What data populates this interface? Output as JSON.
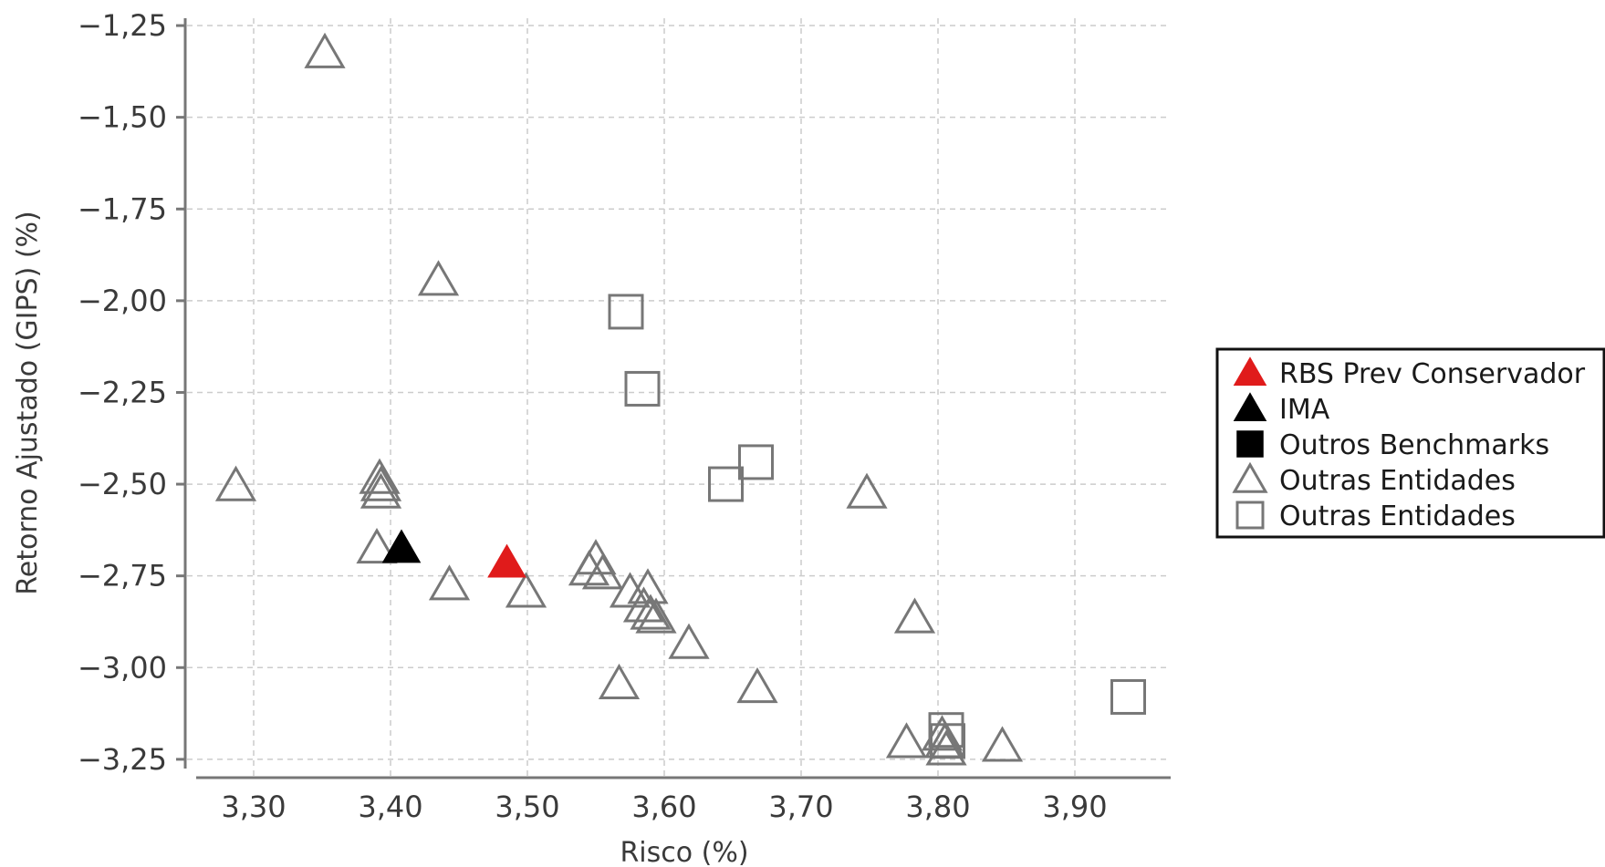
{
  "chart_data": {
    "type": "scatter",
    "title": "",
    "xlabel": "Risco (%)",
    "ylabel": "Retorno Ajustado (GIPS) (%)",
    "xlim": [
      3.25,
      3.97
    ],
    "ylim": [
      -3.3,
      -1.23
    ],
    "x_ticks": [
      3.3,
      3.4,
      3.5,
      3.6,
      3.7,
      3.8,
      3.9
    ],
    "x_tick_labels": [
      "3,30",
      "3,40",
      "3,50",
      "3,60",
      "3,70",
      "3,80",
      "3,90"
    ],
    "y_ticks": [
      -1.25,
      -1.5,
      -1.75,
      -2.0,
      -2.25,
      -2.5,
      -2.75,
      -3.0,
      -3.25
    ],
    "y_tick_labels": [
      "−1,25",
      "−1,50",
      "−1,75",
      "−2,00",
      "−2,25",
      "−2,50",
      "−2,75",
      "−3,00",
      "−3,25"
    ],
    "grid": true,
    "legend_position": "right",
    "series": [
      {
        "name": "RBS Prev Conservador",
        "marker": "triangle",
        "filled": true,
        "color": "#e01b1b",
        "points": [
          [
            3.485,
            -2.72
          ]
        ]
      },
      {
        "name": "IMA",
        "marker": "triangle",
        "filled": true,
        "color": "#000000",
        "points": [
          [
            3.408,
            -2.68
          ]
        ]
      },
      {
        "name": "Outros Benchmarks",
        "marker": "square",
        "filled": true,
        "color": "#000000",
        "points": []
      },
      {
        "name": "Outras Entidades",
        "marker": "triangle",
        "filled": false,
        "color": "#777777",
        "points": [
          [
            3.352,
            -1.33
          ],
          [
            3.435,
            -1.95
          ],
          [
            3.287,
            -2.51
          ],
          [
            3.392,
            -2.49
          ],
          [
            3.393,
            -2.51
          ],
          [
            3.393,
            -2.53
          ],
          [
            3.39,
            -2.68
          ],
          [
            3.443,
            -2.78
          ],
          [
            3.499,
            -2.8
          ],
          [
            3.545,
            -2.74
          ],
          [
            3.55,
            -2.71
          ],
          [
            3.555,
            -2.75
          ],
          [
            3.575,
            -2.8
          ],
          [
            3.588,
            -2.79
          ],
          [
            3.585,
            -2.84
          ],
          [
            3.59,
            -2.86
          ],
          [
            3.594,
            -2.87
          ],
          [
            3.618,
            -2.94
          ],
          [
            3.567,
            -3.05
          ],
          [
            3.668,
            -3.06
          ],
          [
            3.748,
            -2.53
          ],
          [
            3.783,
            -2.87
          ],
          [
            3.777,
            -3.21
          ],
          [
            3.803,
            -3.19
          ],
          [
            3.805,
            -3.21
          ],
          [
            3.806,
            -3.23
          ],
          [
            3.847,
            -3.22
          ]
        ]
      },
      {
        "name": "Outras Entidades",
        "marker": "square",
        "filled": false,
        "color": "#777777",
        "points": [
          [
            3.572,
            -2.03
          ],
          [
            3.584,
            -2.24
          ],
          [
            3.645,
            -2.5
          ],
          [
            3.667,
            -2.44
          ],
          [
            3.806,
            -3.17
          ],
          [
            3.807,
            -3.2
          ],
          [
            3.939,
            -3.08
          ]
        ]
      }
    ]
  },
  "colors": {
    "axis": "#777777",
    "grid": "#cccccc",
    "text": "#3a3a3a",
    "outline_markers": "#777777",
    "highlight": "#e01b1b"
  }
}
